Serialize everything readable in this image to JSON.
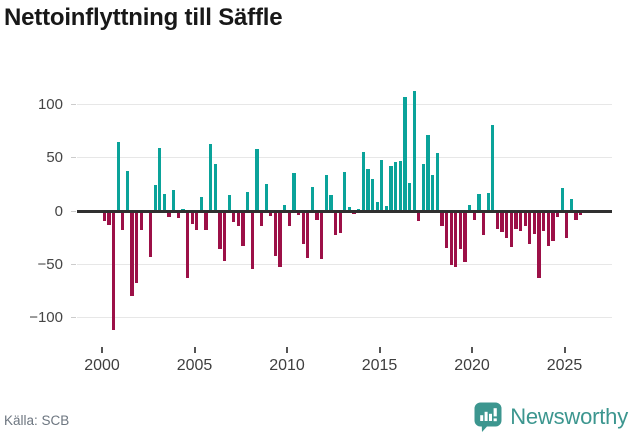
{
  "title": "Nettoinflyttning till Säffle",
  "source": "Källa: SCB",
  "brand": {
    "name": "Newsworthy",
    "icon": "newsworthy-speech-bubble-chart-icon",
    "color": "#3c968f"
  },
  "colors": {
    "positive_bar": "#0aa39a",
    "negative_bar": "#9c1047",
    "zero_axis": "#303030",
    "gridline": "#e7e7e7",
    "tick_label": "#454545"
  },
  "chart_data": {
    "type": "bar",
    "title": "Nettoinflyttning till Säffle",
    "x_start": "2000-Q1",
    "x_step": "quarter",
    "values": [
      -9,
      -13,
      -112,
      65,
      -18,
      38,
      -80,
      -68,
      -18,
      0,
      -43,
      24,
      59,
      16,
      -6,
      20,
      -7,
      2,
      -63,
      -12,
      -18,
      13,
      -18,
      63,
      44,
      -36,
      -47,
      15,
      -10,
      -14,
      -33,
      18,
      -54,
      58,
      -14,
      25,
      -5,
      -42,
      -53,
      6,
      -14,
      36,
      -4,
      -31,
      -44,
      23,
      -8,
      -45,
      34,
      15,
      -23,
      -21,
      37,
      4,
      -3,
      2,
      55,
      39,
      30,
      8,
      48,
      5,
      42,
      46,
      47,
      107,
      26,
      113,
      -9,
      44,
      71,
      34,
      54,
      -14,
      -35,
      -51,
      -53,
      -36,
      -48,
      6,
      -8,
      16,
      -23,
      17,
      81,
      -17,
      -20,
      -25,
      -34,
      -17,
      -19,
      -14,
      -31,
      -22,
      -63,
      -19,
      -33,
      -28,
      -6,
      22,
      -25,
      11,
      -8,
      -4
    ],
    "xtick_labels": [
      "2000",
      "2005",
      "2010",
      "2015",
      "2020",
      "2025"
    ],
    "ytick_values": [
      100,
      50,
      0,
      -50,
      -100
    ],
    "ytick_labels": [
      "100",
      "50",
      "0",
      "−50",
      "−100"
    ],
    "ylim": [
      -120,
      120
    ],
    "grid": true,
    "legend": false,
    "positive_color": "#0aa39a",
    "negative_color": "#9c1047"
  }
}
